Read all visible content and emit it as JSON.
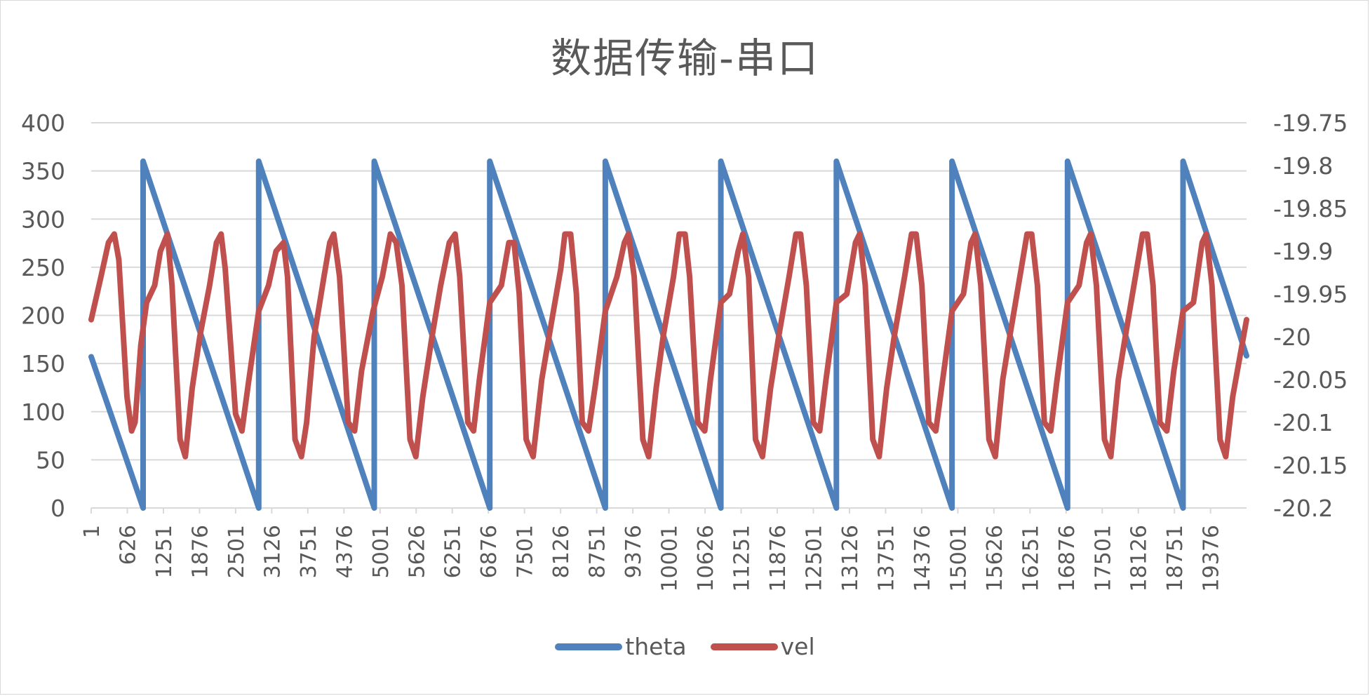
{
  "chart_data": {
    "type": "line",
    "title": "数据传输-串口",
    "grid": true,
    "legend_position": "bottom",
    "x_axis": {
      "min": 1,
      "max": 19999,
      "tick_labels": [
        "1",
        "626",
        "1251",
        "1876",
        "2501",
        "3126",
        "3751",
        "4376",
        "5001",
        "5626",
        "6251",
        "6876",
        "7501",
        "8126",
        "8751",
        "9376",
        "10001",
        "10626",
        "11251",
        "11876",
        "12501",
        "13126",
        "13751",
        "14376",
        "15001",
        "15626",
        "16251",
        "16876",
        "17501",
        "18126",
        "18751",
        "19376"
      ]
    },
    "y_axis_left": {
      "ylim": [
        0,
        400
      ],
      "tick_labels": [
        "0",
        "50",
        "100",
        "150",
        "200",
        "250",
        "300",
        "350",
        "400"
      ]
    },
    "y_axis_right": {
      "ylim": [
        -20.2,
        -19.75
      ],
      "tick_labels": [
        "-20.2",
        "-20.15",
        "-20.1",
        "-20.05",
        "-20",
        "-19.95",
        "-19.9",
        "-19.85",
        "-19.8",
        "-19.75"
      ]
    },
    "series": [
      {
        "name": "theta",
        "axis": "left",
        "color": "#4f81bd",
        "points": [
          [
            1,
            157
          ],
          [
            900,
            0
          ],
          [
            900,
            360
          ],
          [
            2900,
            0
          ],
          [
            2900,
            360
          ],
          [
            4900,
            0
          ],
          [
            4900,
            360
          ],
          [
            6900,
            0
          ],
          [
            6900,
            360
          ],
          [
            8900,
            0
          ],
          [
            8900,
            360
          ],
          [
            10900,
            0
          ],
          [
            10900,
            360
          ],
          [
            12900,
            0
          ],
          [
            12900,
            360
          ],
          [
            14900,
            0
          ],
          [
            14900,
            360
          ],
          [
            16900,
            0
          ],
          [
            16900,
            360
          ],
          [
            18900,
            0
          ],
          [
            18900,
            360
          ],
          [
            19999,
            158
          ]
        ]
      },
      {
        "name": "vel",
        "axis": "right",
        "color": "#c0504d",
        "points": [
          [
            1,
            -19.98
          ],
          [
            170,
            -19.93
          ],
          [
            300,
            -19.89
          ],
          [
            400,
            -19.88
          ],
          [
            480,
            -19.91
          ],
          [
            620,
            -20.07
          ],
          [
            700,
            -20.11
          ],
          [
            760,
            -20.1
          ],
          [
            860,
            -20.01
          ],
          [
            960,
            -19.96
          ],
          [
            1100,
            -19.94
          ],
          [
            1200,
            -19.9
          ],
          [
            1320,
            -19.88
          ],
          [
            1400,
            -19.94
          ],
          [
            1540,
            -20.12
          ],
          [
            1630,
            -20.14
          ],
          [
            1750,
            -20.06
          ],
          [
            1880,
            -20.0
          ],
          [
            2050,
            -19.94
          ],
          [
            2170,
            -19.89
          ],
          [
            2250,
            -19.88
          ],
          [
            2320,
            -19.92
          ],
          [
            2500,
            -20.09
          ],
          [
            2610,
            -20.11
          ],
          [
            2730,
            -20.05
          ],
          [
            2900,
            -19.97
          ],
          [
            3070,
            -19.94
          ],
          [
            3200,
            -19.9
          ],
          [
            3330,
            -19.89
          ],
          [
            3400,
            -19.93
          ],
          [
            3530,
            -20.12
          ],
          [
            3640,
            -20.14
          ],
          [
            3730,
            -20.1
          ],
          [
            3860,
            -20.0
          ],
          [
            4030,
            -19.93
          ],
          [
            4130,
            -19.89
          ],
          [
            4200,
            -19.88
          ],
          [
            4300,
            -19.93
          ],
          [
            4450,
            -20.1
          ],
          [
            4560,
            -20.11
          ],
          [
            4680,
            -20.04
          ],
          [
            4880,
            -19.97
          ],
          [
            5040,
            -19.93
          ],
          [
            5180,
            -19.88
          ],
          [
            5280,
            -19.89
          ],
          [
            5380,
            -19.94
          ],
          [
            5520,
            -20.12
          ],
          [
            5620,
            -20.14
          ],
          [
            5740,
            -20.07
          ],
          [
            5900,
            -20.0
          ],
          [
            6050,
            -19.94
          ],
          [
            6200,
            -19.89
          ],
          [
            6300,
            -19.88
          ],
          [
            6380,
            -19.93
          ],
          [
            6520,
            -20.1
          ],
          [
            6620,
            -20.11
          ],
          [
            6720,
            -20.05
          ],
          [
            6900,
            -19.96
          ],
          [
            7100,
            -19.94
          ],
          [
            7230,
            -19.89
          ],
          [
            7320,
            -19.89
          ],
          [
            7410,
            -19.95
          ],
          [
            7530,
            -20.12
          ],
          [
            7650,
            -20.14
          ],
          [
            7800,
            -20.05
          ],
          [
            7950,
            -19.99
          ],
          [
            8130,
            -19.92
          ],
          [
            8200,
            -19.88
          ],
          [
            8300,
            -19.88
          ],
          [
            8400,
            -19.95
          ],
          [
            8500,
            -20.1
          ],
          [
            8610,
            -20.11
          ],
          [
            8720,
            -20.06
          ],
          [
            8900,
            -19.97
          ],
          [
            9100,
            -19.93
          ],
          [
            9230,
            -19.89
          ],
          [
            9300,
            -19.88
          ],
          [
            9400,
            -19.93
          ],
          [
            9550,
            -20.12
          ],
          [
            9650,
            -20.14
          ],
          [
            9780,
            -20.06
          ],
          [
            9900,
            -20.0
          ],
          [
            10080,
            -19.93
          ],
          [
            10180,
            -19.88
          ],
          [
            10280,
            -19.88
          ],
          [
            10360,
            -19.93
          ],
          [
            10500,
            -20.1
          ],
          [
            10620,
            -20.11
          ],
          [
            10720,
            -20.05
          ],
          [
            10900,
            -19.96
          ],
          [
            11050,
            -19.95
          ],
          [
            11200,
            -19.9
          ],
          [
            11280,
            -19.88
          ],
          [
            11380,
            -19.93
          ],
          [
            11500,
            -20.12
          ],
          [
            11620,
            -20.14
          ],
          [
            11760,
            -20.06
          ],
          [
            11900,
            -20.0
          ],
          [
            12080,
            -19.93
          ],
          [
            12200,
            -19.88
          ],
          [
            12280,
            -19.88
          ],
          [
            12380,
            -19.94
          ],
          [
            12500,
            -20.1
          ],
          [
            12610,
            -20.11
          ],
          [
            12720,
            -20.05
          ],
          [
            12900,
            -19.96
          ],
          [
            13080,
            -19.95
          ],
          [
            13230,
            -19.89
          ],
          [
            13300,
            -19.88
          ],
          [
            13400,
            -19.94
          ],
          [
            13530,
            -20.12
          ],
          [
            13640,
            -20.14
          ],
          [
            13770,
            -20.06
          ],
          [
            13900,
            -20.0
          ],
          [
            14080,
            -19.93
          ],
          [
            14200,
            -19.88
          ],
          [
            14280,
            -19.88
          ],
          [
            14380,
            -19.94
          ],
          [
            14500,
            -20.1
          ],
          [
            14620,
            -20.11
          ],
          [
            14740,
            -20.05
          ],
          [
            14900,
            -19.97
          ],
          [
            15100,
            -19.95
          ],
          [
            15230,
            -19.89
          ],
          [
            15300,
            -19.88
          ],
          [
            15400,
            -19.94
          ],
          [
            15540,
            -20.12
          ],
          [
            15650,
            -20.14
          ],
          [
            15780,
            -20.05
          ],
          [
            15900,
            -20.0
          ],
          [
            16100,
            -19.92
          ],
          [
            16200,
            -19.88
          ],
          [
            16280,
            -19.88
          ],
          [
            16380,
            -19.94
          ],
          [
            16500,
            -20.1
          ],
          [
            16610,
            -20.11
          ],
          [
            16720,
            -20.05
          ],
          [
            16900,
            -19.96
          ],
          [
            17100,
            -19.94
          ],
          [
            17230,
            -19.89
          ],
          [
            17300,
            -19.88
          ],
          [
            17400,
            -19.94
          ],
          [
            17540,
            -20.12
          ],
          [
            17650,
            -20.14
          ],
          [
            17780,
            -20.05
          ],
          [
            17900,
            -20.0
          ],
          [
            18100,
            -19.92
          ],
          [
            18200,
            -19.88
          ],
          [
            18280,
            -19.88
          ],
          [
            18380,
            -19.94
          ],
          [
            18500,
            -20.1
          ],
          [
            18620,
            -20.11
          ],
          [
            18740,
            -20.04
          ],
          [
            18900,
            -19.97
          ],
          [
            19080,
            -19.96
          ],
          [
            19230,
            -19.89
          ],
          [
            19300,
            -19.88
          ],
          [
            19400,
            -19.94
          ],
          [
            19540,
            -20.12
          ],
          [
            19640,
            -20.14
          ],
          [
            19760,
            -20.07
          ],
          [
            19999,
            -19.98
          ]
        ]
      }
    ]
  }
}
